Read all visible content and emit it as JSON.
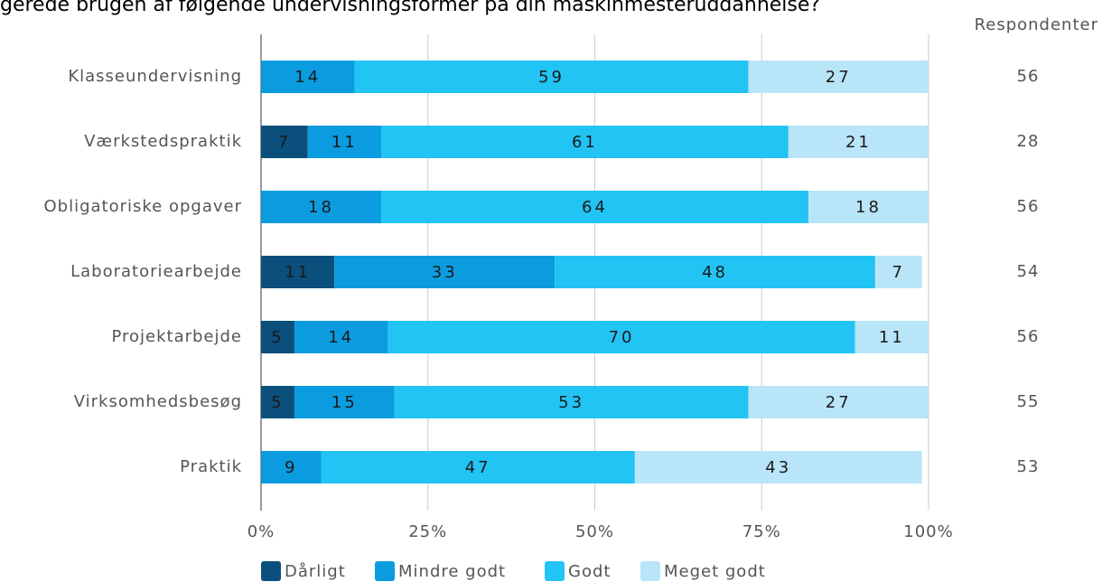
{
  "chart_data": {
    "type": "stacked-bar-horizontal",
    "title": "gerede brugen af følgende undervisningsformer på din maskinmesteruddannelse?",
    "categories": [
      "Klasseundervisning",
      "Værkstedspraktik",
      "Obligatoriske opgaver",
      "Laboratoriearbejde",
      "Projektarbejde",
      "Virksomhedsbesøg",
      "Praktik"
    ],
    "series": [
      {
        "name": "Dårligt",
        "color": "#0b4f7c",
        "values": [
          null,
          7,
          null,
          11,
          5,
          5,
          null
        ]
      },
      {
        "name": "Mindre godt",
        "color": "#0b9ce0",
        "values": [
          14,
          11,
          18,
          33,
          14,
          15,
          9
        ]
      },
      {
        "name": "Godt",
        "color": "#22c4f4",
        "values": [
          59,
          61,
          64,
          48,
          70,
          53,
          47
        ]
      },
      {
        "name": "Meget godt",
        "color": "#b9e5f8",
        "values": [
          27,
          21,
          18,
          7,
          11,
          27,
          43
        ]
      }
    ],
    "xlim": [
      0,
      100
    ],
    "xticks": [
      {
        "value": 0,
        "label": "0%"
      },
      {
        "value": 25,
        "label": "25%"
      },
      {
        "value": 50,
        "label": "50%"
      },
      {
        "value": 75,
        "label": "75%"
      },
      {
        "value": 100,
        "label": "100%"
      }
    ],
    "grid": true,
    "legend": "bottom",
    "respondents_label": "Respondenter",
    "respondents": [
      56,
      28,
      56,
      54,
      56,
      55,
      53
    ]
  }
}
